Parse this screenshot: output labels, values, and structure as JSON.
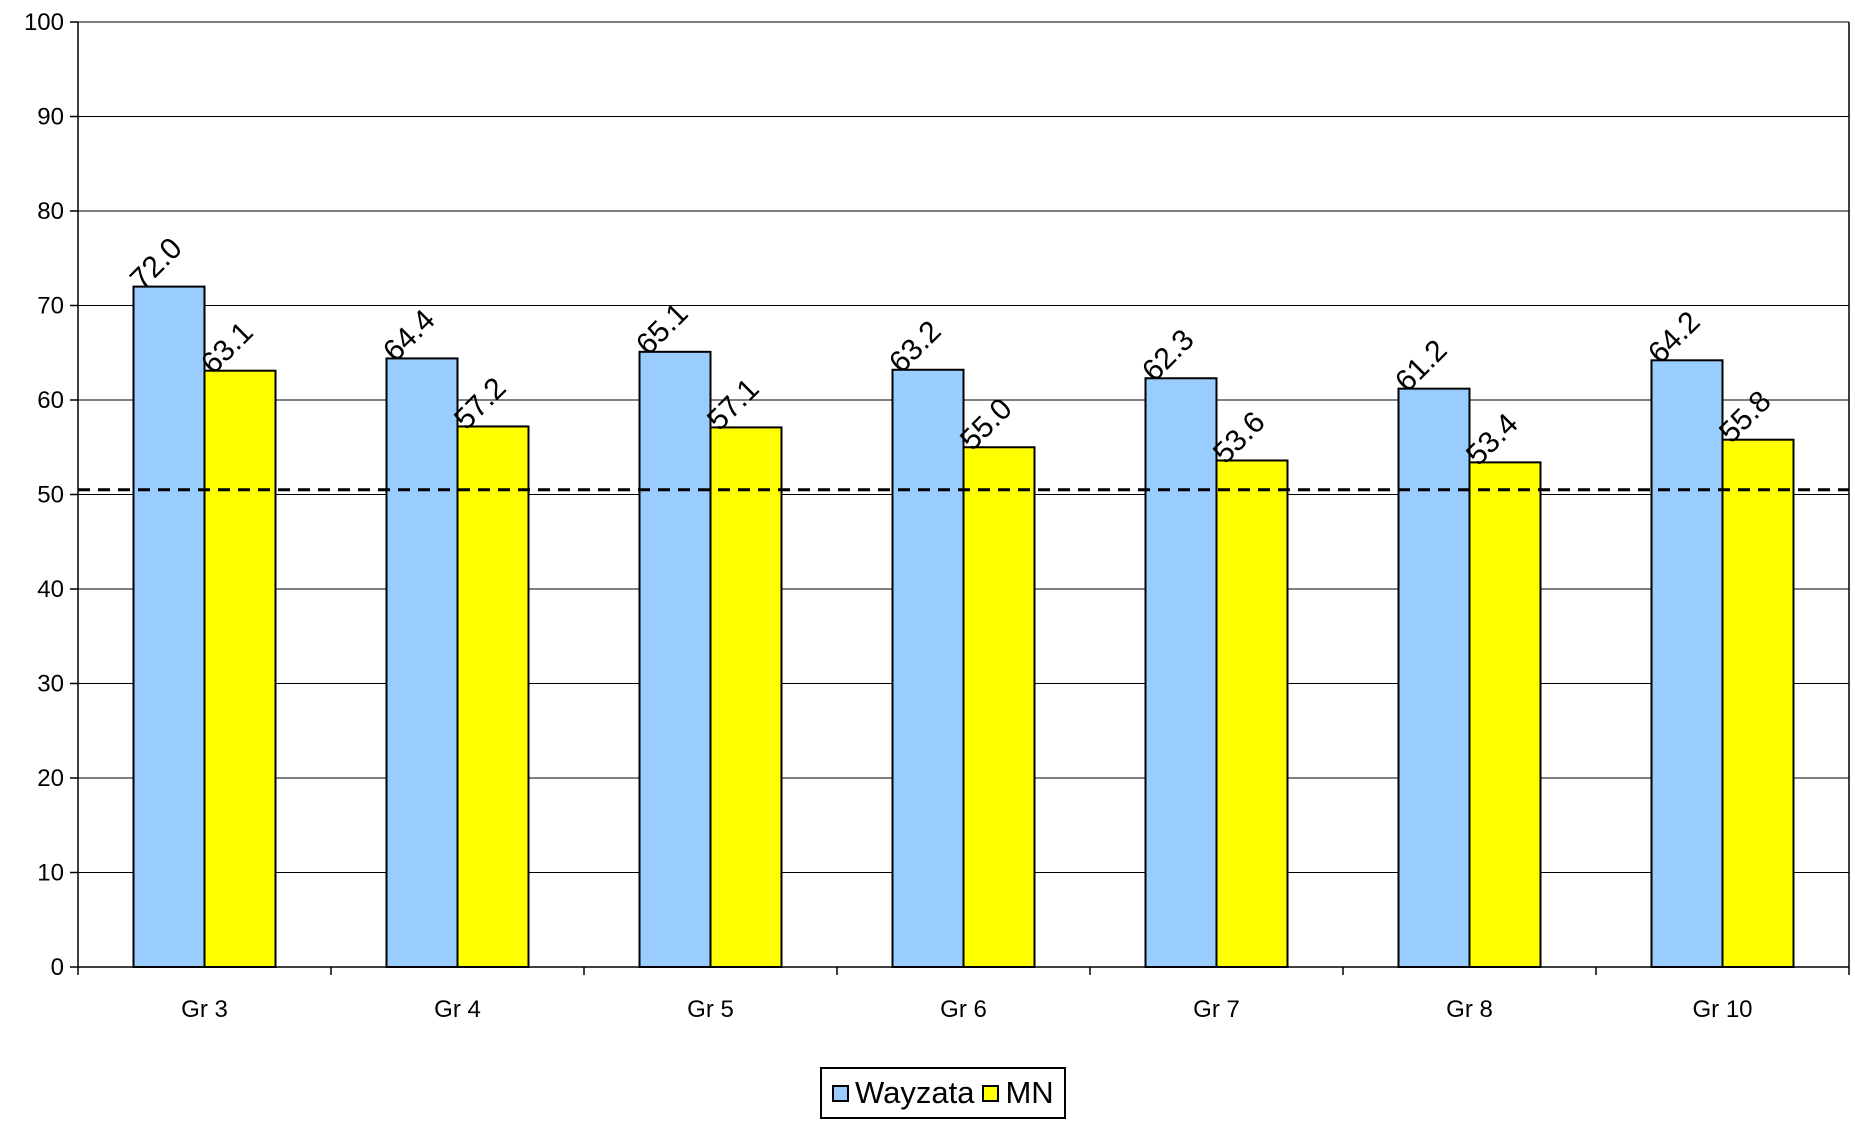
{
  "chart_data": {
    "type": "bar",
    "title": "",
    "xlabel": "",
    "ylabel": "",
    "categories": [
      "Gr 3",
      "Gr 4",
      "Gr 5",
      "Gr 6",
      "Gr 7",
      "Gr 8",
      "Gr 10"
    ],
    "series": [
      {
        "name": "Wayzata",
        "color": "#99ccff",
        "values": [
          72.0,
          64.4,
          65.1,
          63.2,
          62.3,
          61.2,
          64.2
        ],
        "labels": [
          "72.0",
          "64.4",
          "65.1",
          "63.2",
          "62.3",
          "61.2",
          "64.2"
        ]
      },
      {
        "name": "MN",
        "color": "#ffff00",
        "values": [
          63.1,
          57.2,
          57.1,
          55.0,
          53.6,
          53.4,
          55.8
        ],
        "labels": [
          "63.1",
          "57.2",
          "57.1",
          "55.0",
          "53.6",
          "53.4",
          "55.8"
        ]
      }
    ],
    "ylim": [
      0,
      100
    ],
    "yticks": [
      "0",
      "10",
      "20",
      "30",
      "40",
      "50",
      "60",
      "70",
      "80",
      "90",
      "100"
    ],
    "reference_line": {
      "value": 50.5,
      "style": "dashed"
    },
    "grid": true,
    "legend_position": "bottom-center"
  }
}
